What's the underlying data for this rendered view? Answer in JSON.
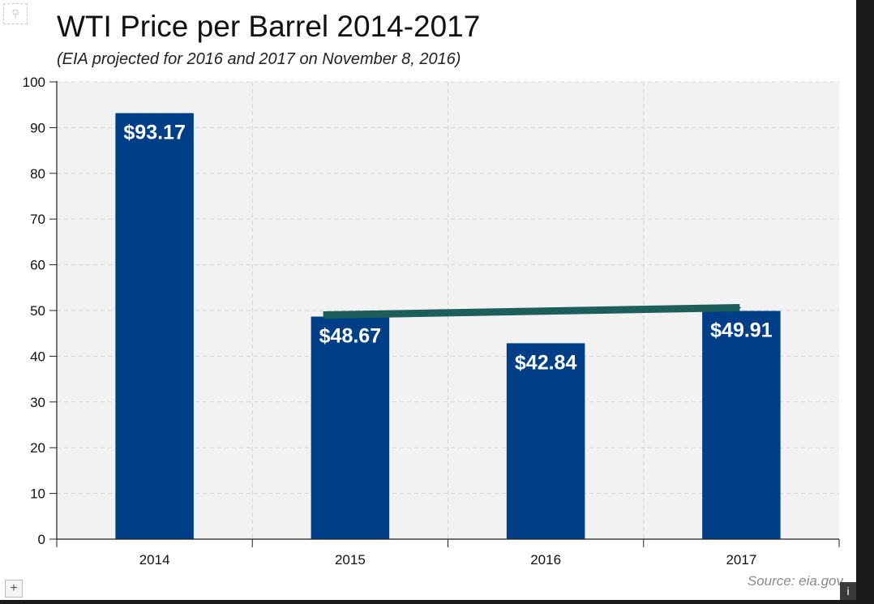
{
  "chart_data": {
    "type": "bar",
    "title": "WTI Price per Barrel 2014-2017",
    "subtitle": "(EIA projected for 2016 and 2017 on November 8, 2016)",
    "categories": [
      "2014",
      "2015",
      "2016",
      "2017"
    ],
    "values": [
      93.17,
      48.67,
      42.84,
      49.91
    ],
    "data_labels": [
      "$93.17",
      "$48.67",
      "$42.84",
      "$49.91"
    ],
    "xlabel": "",
    "ylabel": "",
    "ylim": [
      0,
      100
    ],
    "yticks": [
      0,
      10,
      20,
      30,
      40,
      50,
      60,
      70,
      80,
      90,
      100
    ],
    "grid": true,
    "bar_color": "#003f87",
    "annotation": {
      "type": "arrow",
      "from_category": "2015",
      "to_category": "2017",
      "color": "#1e5e5a"
    },
    "source": "Source: eia.gov"
  },
  "controls": {
    "expand_label": "+",
    "info_label": "i",
    "fullscreen_icon": "magnifier-icon"
  }
}
